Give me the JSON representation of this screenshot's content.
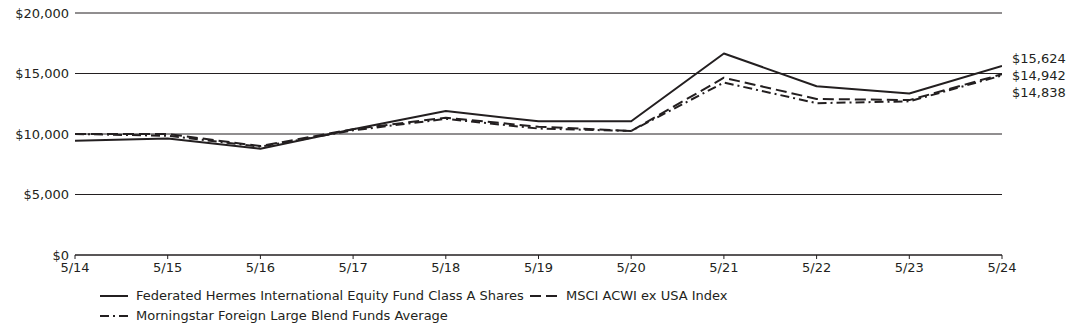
{
  "chart_data": {
    "type": "line",
    "categories": [
      "5/14",
      "5/15",
      "5/16",
      "5/17",
      "5/18",
      "5/19",
      "5/20",
      "5/21",
      "5/22",
      "5/23",
      "5/24"
    ],
    "series": [
      {
        "name": "Federated Hermes International Equity Fund Class A Shares",
        "color": "#231f20",
        "line_style": "solid",
        "values": [
          9450,
          9620,
          8780,
          10400,
          11900,
          11050,
          11050,
          16650,
          13950,
          13350,
          15624
        ]
      },
      {
        "name": "MSCI ACWI ex USA Index",
        "color": "#231f20",
        "line_style": "dashed",
        "values": [
          10000,
          10000,
          9000,
          10400,
          11350,
          10600,
          10250,
          14650,
          12900,
          12800,
          14942
        ]
      },
      {
        "name": "Morningstar Foreign Large Blend Funds Average",
        "color": "#231f20",
        "line_style": "dashdot",
        "values": [
          10000,
          9850,
          8950,
          10300,
          11250,
          10450,
          10250,
          14250,
          12550,
          12700,
          14838
        ]
      }
    ],
    "ylim": [
      0,
      20000
    ],
    "yticks": [
      {
        "value": 0,
        "label": "$0"
      },
      {
        "value": 5000,
        "label": "$5,000"
      },
      {
        "value": 10000,
        "label": "$10,000"
      },
      {
        "value": 15000,
        "label": "$15,000"
      },
      {
        "value": 20000,
        "label": "$20,000"
      }
    ],
    "annotations": [
      {
        "text": "$15,624",
        "value": 15624
      },
      {
        "text": "$14,942",
        "value": 14942
      },
      {
        "text": "$14,838",
        "value": 14838
      }
    ],
    "grid": true,
    "legend": "bottom"
  }
}
